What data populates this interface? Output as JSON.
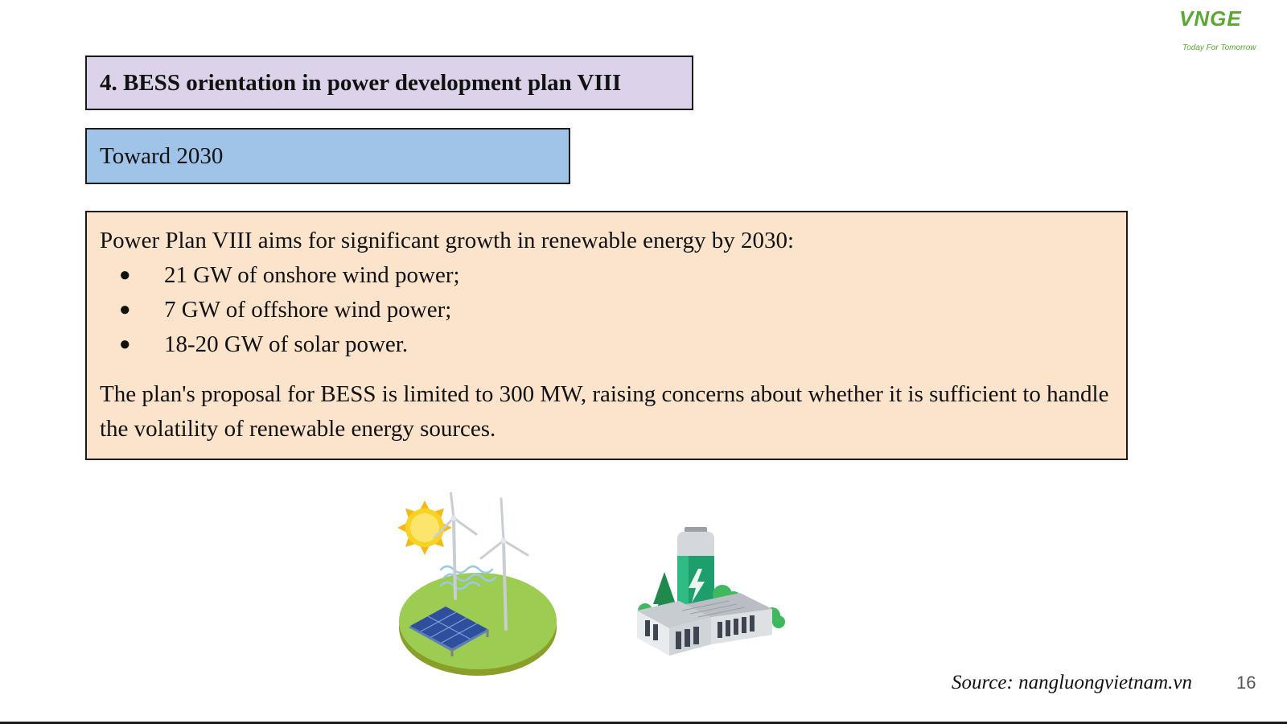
{
  "logo": {
    "mark": "VNGE",
    "tagline": "Today For Tomorrow"
  },
  "title": "4. BESS orientation in power development plan VIII",
  "subtitle": "Toward 2030",
  "content": {
    "intro": "Power Plan VIII aims for significant growth in renewable energy by 2030:",
    "bullet_glyph": "●",
    "bullets": [
      "21 GW of onshore wind power;",
      "7 GW of offshore wind power;",
      "18-20 GW of solar power."
    ],
    "closing": "The plan's proposal for BESS is limited to 300 MW, raising concerns about whether it is sufficient to handle the volatility of renewable energy sources."
  },
  "illustrations": {
    "renewables_icon": "sun-wind-solar-illustration",
    "battery_icon": "battery-storage-illustration"
  },
  "source": "Source: nangluongvietnam.vn",
  "page_number": "16",
  "colors": {
    "title_bg": "#dcd3ea",
    "subtitle_bg": "#9fc4e8",
    "content_bg": "#fce3cc",
    "brand_green": "#5aa832"
  }
}
